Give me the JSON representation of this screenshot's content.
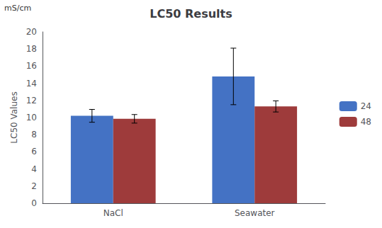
{
  "chart_data": {
    "type": "bar",
    "title": "LC50 Results",
    "ylabel": "LC50 Values",
    "annotations": [
      "mS/cm"
    ],
    "categories": [
      "NaCl",
      "Seawater"
    ],
    "series": [
      {
        "name": "24",
        "color": "#4472C4",
        "values": [
          10.2,
          14.8
        ],
        "errors": [
          0.75,
          3.3
        ]
      },
      {
        "name": "48",
        "color": "#9E3B3B",
        "values": [
          9.85,
          11.3
        ],
        "errors": [
          0.5,
          0.65
        ]
      }
    ],
    "ylim": [
      0,
      20
    ],
    "yticks": [
      0,
      2,
      4,
      6,
      8,
      10,
      12,
      14,
      16,
      18,
      20
    ],
    "grid": false,
    "legend": "right"
  }
}
